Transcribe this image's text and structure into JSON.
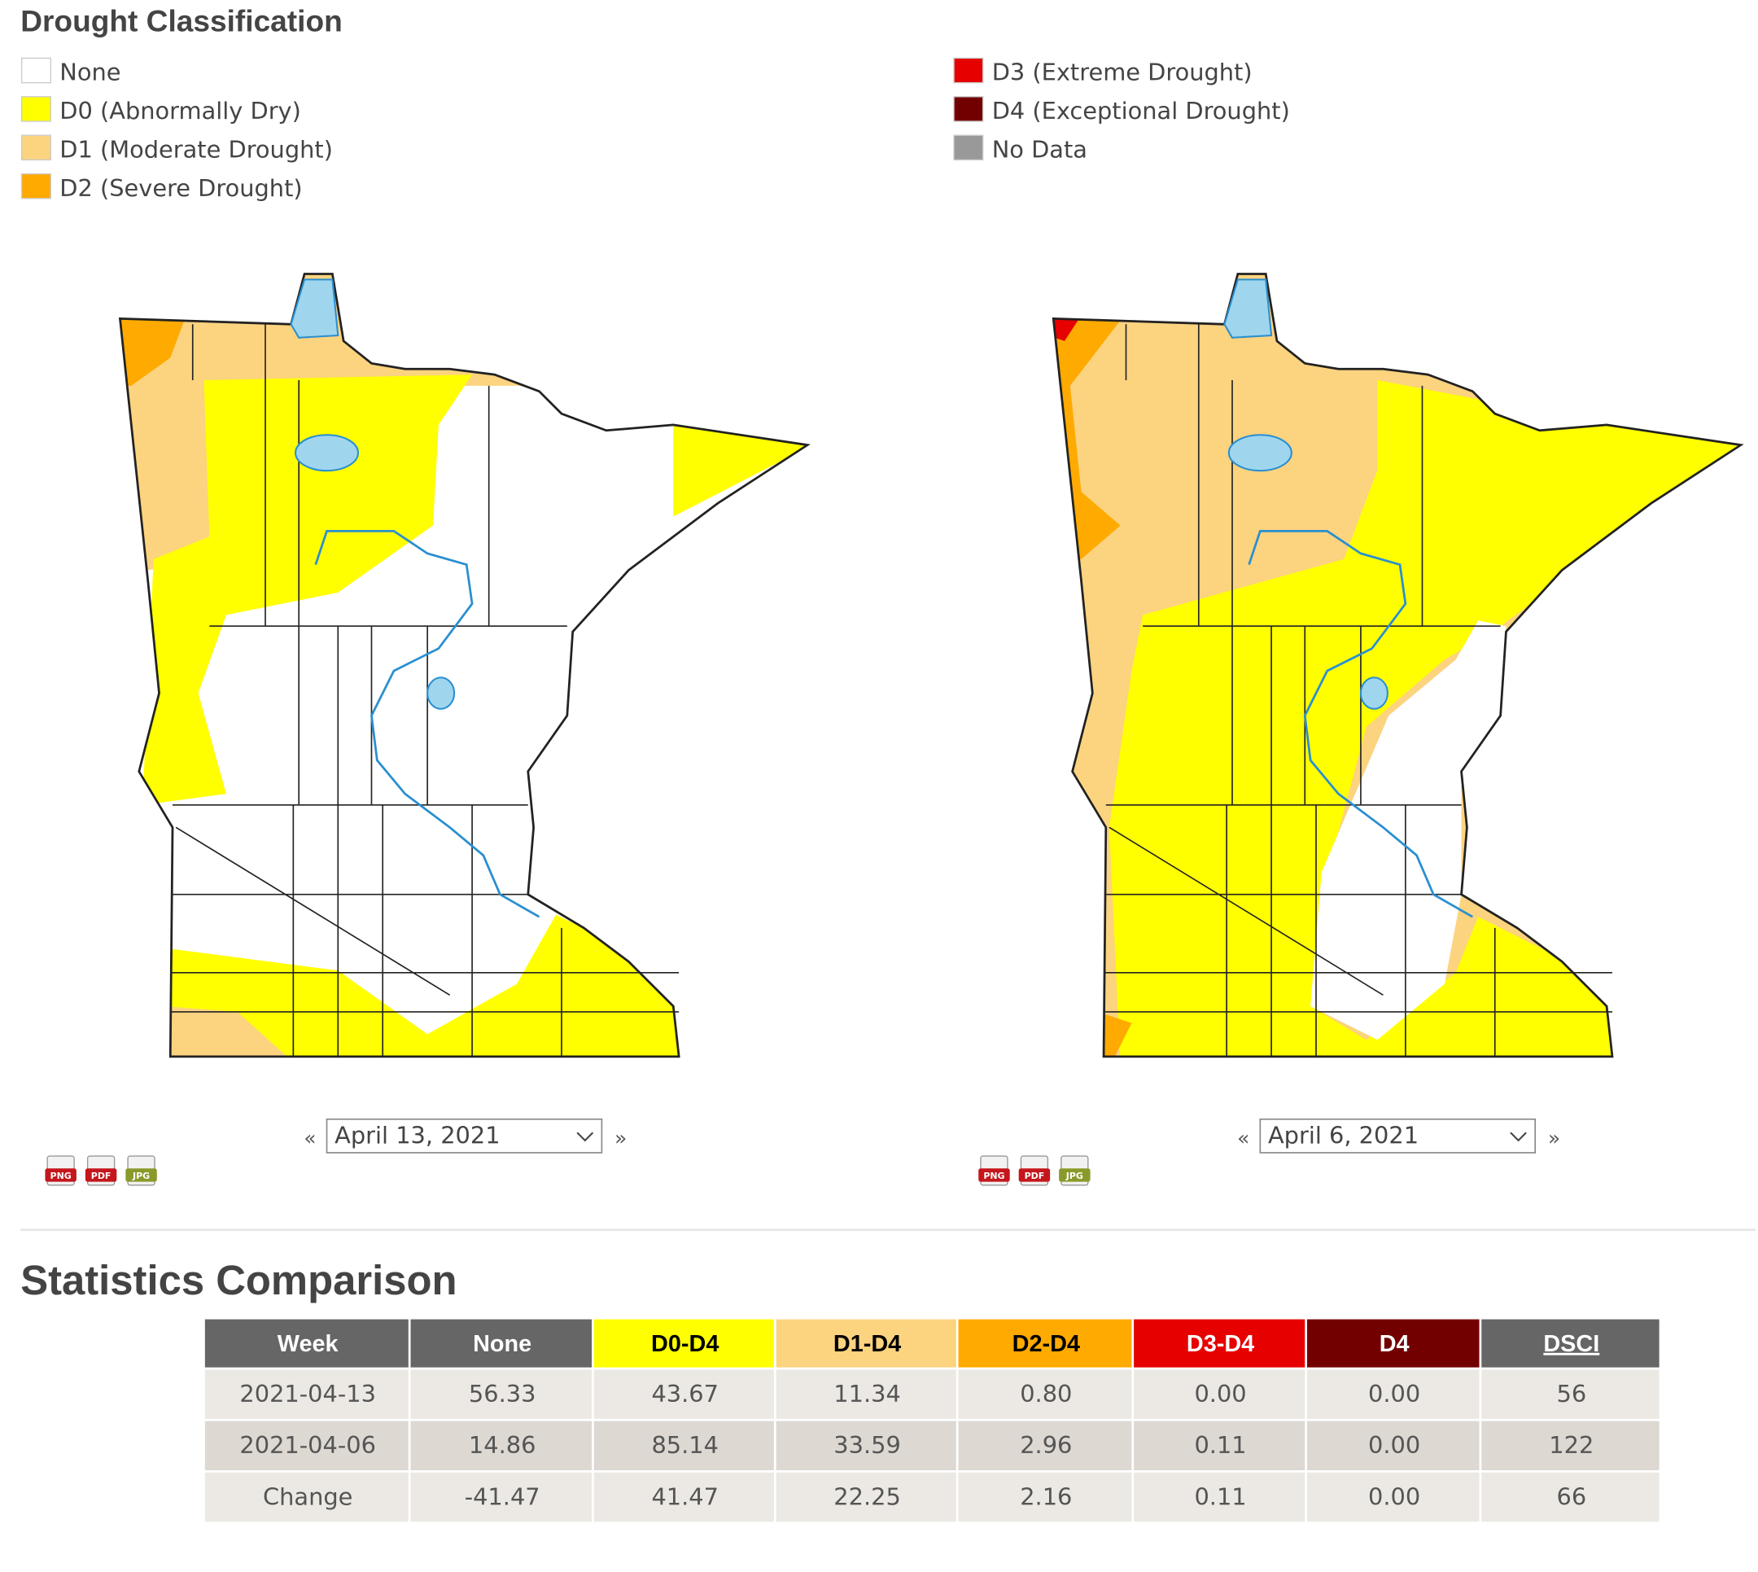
{
  "legend": {
    "title": "Drought Classification",
    "items": [
      {
        "label": "None",
        "color": "#ffffff"
      },
      {
        "label": "D0 (Abnormally Dry)",
        "color": "#ffff00"
      },
      {
        "label": "D1 (Moderate Drought)",
        "color": "#fcd37f"
      },
      {
        "label": "D2 (Severe Drought)",
        "color": "#ffaa00"
      },
      {
        "label": "D3 (Extreme Drought)",
        "color": "#e60000"
      },
      {
        "label": "D4 (Exceptional Drought)",
        "color": "#730000"
      },
      {
        "label": "No Data",
        "color": "#999999"
      }
    ]
  },
  "maps": [
    {
      "date": "April 13, 2021"
    },
    {
      "date": "April 6, 2021"
    }
  ],
  "export_formats": [
    {
      "label": "PNG",
      "color": "#c4161c"
    },
    {
      "label": "PDF",
      "color": "#c4161c"
    },
    {
      "label": "JPG",
      "color": "#8a9a2a"
    }
  ],
  "statistics": {
    "title": "Statistics Comparison",
    "header": [
      {
        "label": "Week",
        "color": "#666666",
        "text_color": "#ffffff"
      },
      {
        "label": "None",
        "color": "#666666",
        "text_color": "#ffffff"
      },
      {
        "label": "D0-D4",
        "color": "#ffff00",
        "text_color": "#000000"
      },
      {
        "label": "D1-D4",
        "color": "#fcd37f",
        "text_color": "#000000"
      },
      {
        "label": "D2-D4",
        "color": "#ffaa00",
        "text_color": "#000000"
      },
      {
        "label": "D3-D4",
        "color": "#e60000",
        "text_color": "#ffffff"
      },
      {
        "label": "D4",
        "color": "#730000",
        "text_color": "#ffffff"
      },
      {
        "label": "DSCI",
        "color": "#666666",
        "text_color": "#ffffff"
      }
    ],
    "rows": [
      [
        "2021-04-13",
        "56.33",
        "43.67",
        "11.34",
        "0.80",
        "0.00",
        "0.00",
        "56"
      ],
      [
        "2021-04-06",
        "14.86",
        "85.14",
        "33.59",
        "2.96",
        "0.11",
        "0.00",
        "122"
      ],
      [
        "Change",
        "-41.47",
        "41.47",
        "22.25",
        "2.16",
        "0.11",
        "0.00",
        "66"
      ]
    ]
  }
}
